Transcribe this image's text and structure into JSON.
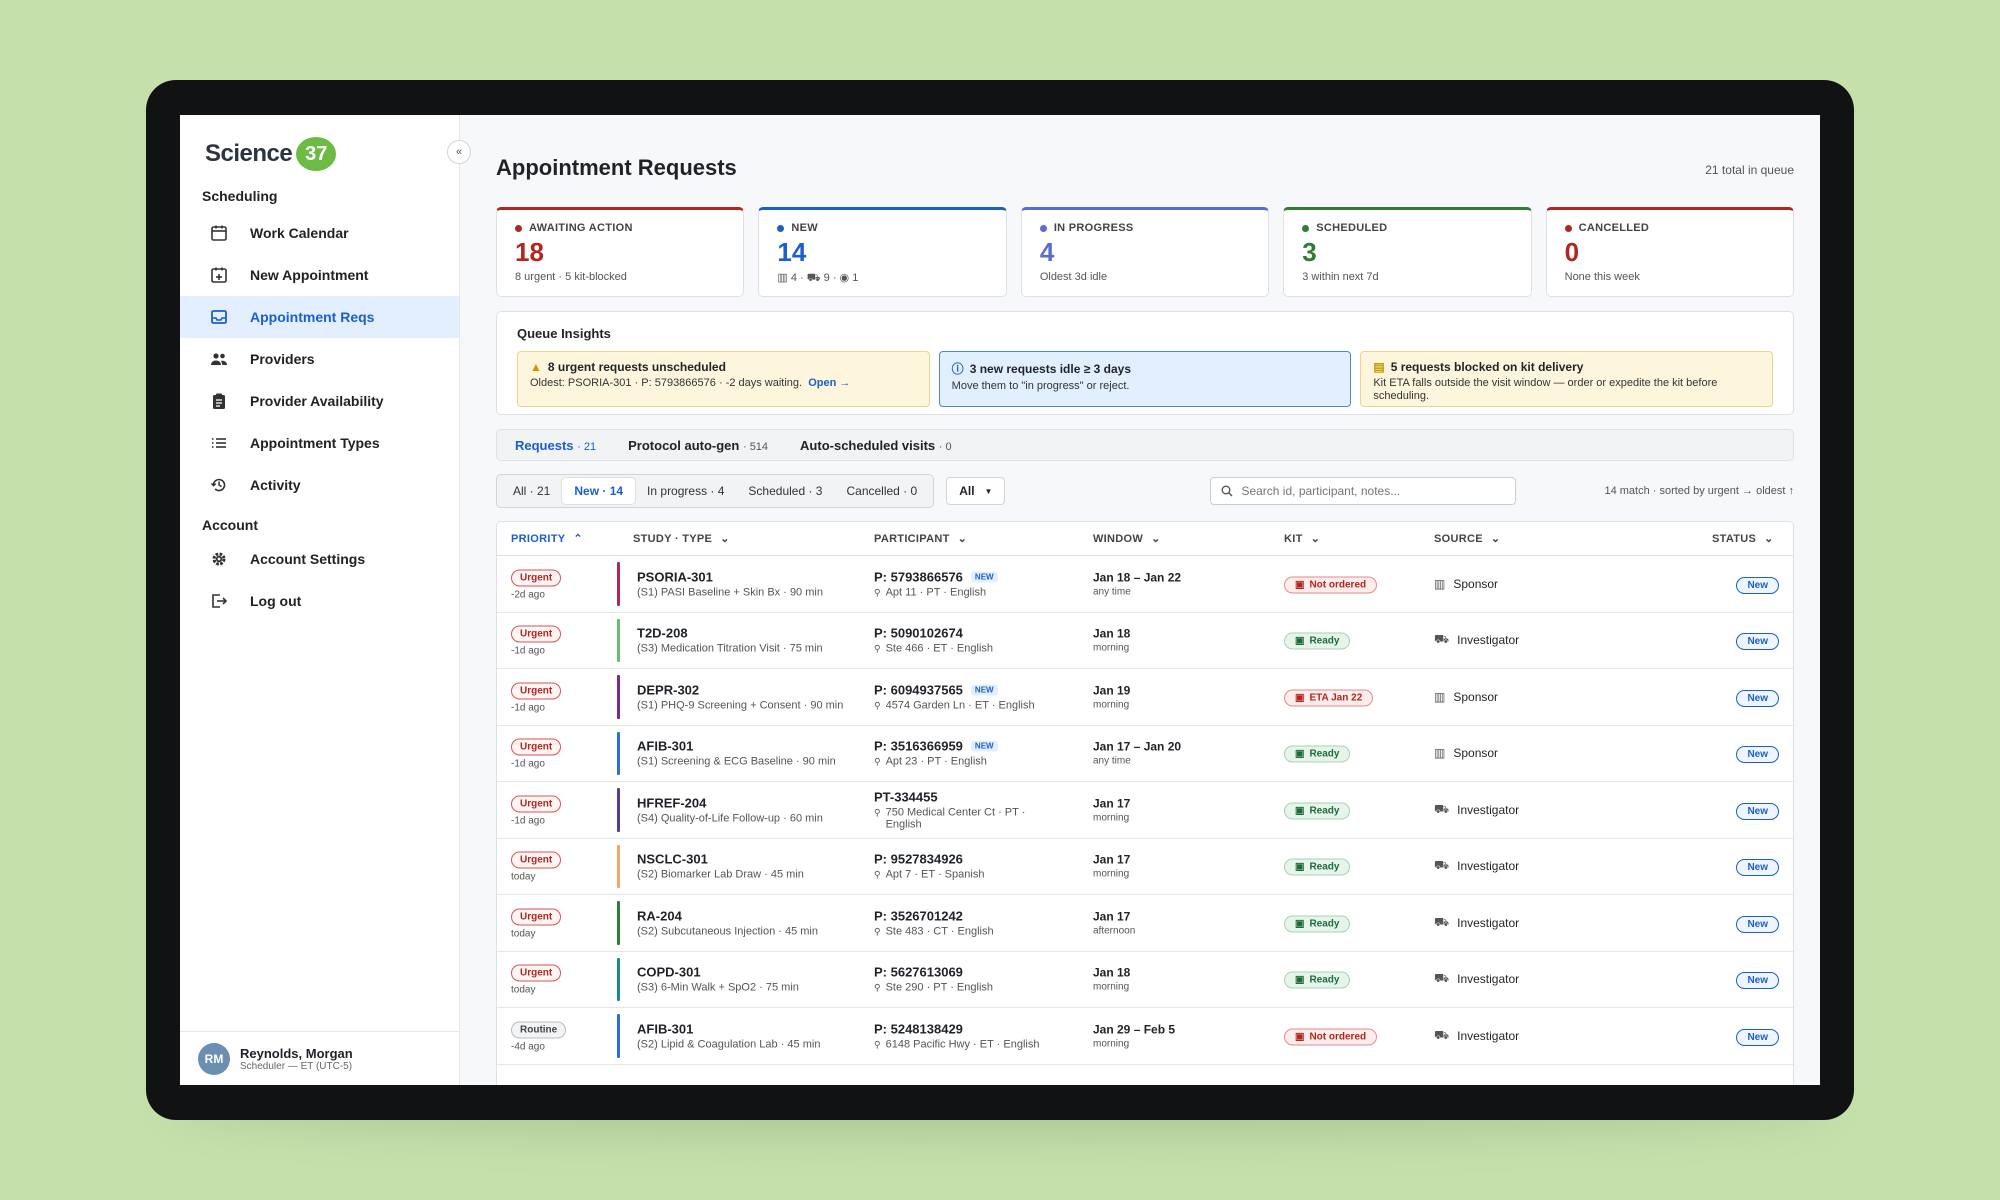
{
  "brand": {
    "name": "Science",
    "badge": "37"
  },
  "sidebar": {
    "collapse_label": "«",
    "sections": {
      "scheduling": "Scheduling",
      "account": "Account"
    },
    "items": [
      {
        "label": "Work Calendar",
        "icon": "calendar-icon"
      },
      {
        "label": "New Appointment",
        "icon": "calendar-plus-icon"
      },
      {
        "label": "Appointment Reqs",
        "icon": "inbox-icon"
      },
      {
        "label": "Providers",
        "icon": "people-icon"
      },
      {
        "label": "Provider Availability",
        "icon": "clipboard-icon"
      },
      {
        "label": "Appointment Types",
        "icon": "list-icon"
      },
      {
        "label": "Activity",
        "icon": "history-icon"
      }
    ],
    "account_items": [
      {
        "label": "Account Settings",
        "icon": "gear-icon"
      },
      {
        "label": "Log out",
        "icon": "logout-icon"
      }
    ],
    "user": {
      "initials": "RM",
      "name": "Reynolds, Morgan",
      "role": "Scheduler — ET (UTC-5)"
    }
  },
  "header": {
    "title": "Appointment Requests",
    "total": "21 total in queue"
  },
  "cards": [
    {
      "label": "AWAITING ACTION",
      "value": "18",
      "sub": "8 urgent · 5 kit-blocked",
      "color": "#b3261e"
    },
    {
      "label": "NEW",
      "value": "14",
      "sub": "▥ 4 · ⛟ 9 · ◉ 1",
      "color": "#1a5fcc"
    },
    {
      "label": "IN PROGRESS",
      "value": "4",
      "sub": "Oldest 3d idle",
      "color": "#5b6bd6"
    },
    {
      "label": "SCHEDULED",
      "value": "3",
      "sub": "3 within next 7d",
      "color": "#2e7d32"
    },
    {
      "label": "CANCELLED",
      "value": "0",
      "sub": "None this week",
      "color": "#b3261e"
    }
  ],
  "insights": {
    "title": "Queue Insights",
    "items": [
      {
        "head": "8 urgent requests unscheduled",
        "body": "Oldest: PSORIA-301 · P: 5793866576 · -2 days waiting.",
        "link": "Open →"
      },
      {
        "head": "3 new requests idle ≥ 3 days",
        "body": "Move them to \"in progress\" or reject.",
        "link": ""
      },
      {
        "head": "5 requests blocked on kit delivery",
        "body": "Kit ETA falls outside the visit window — order or expedite the kit before scheduling.",
        "link": ""
      }
    ]
  },
  "tabs": [
    {
      "label": "Requests",
      "count": "· 21"
    },
    {
      "label": "Protocol auto-gen",
      "count": "· 514"
    },
    {
      "label": "Auto-scheduled visits",
      "count": "· 0"
    }
  ],
  "filters": {
    "segments": [
      "All · 21",
      "New · 14",
      "In progress · 4",
      "Scheduled · 3",
      "Cancelled · 0"
    ],
    "select_value": "All",
    "search_placeholder": "Search id, participant, notes...",
    "match_text": "14 match · sorted by urgent → oldest ↑"
  },
  "columns": [
    "PRIORITY",
    "STUDY · TYPE",
    "PARTICIPANT",
    "WINDOW",
    "KIT",
    "SOURCE",
    "STATUS"
  ],
  "rows": [
    {
      "priority": "Urgent",
      "ago": "-2d ago",
      "bar": "#b0245f",
      "study": "PSORIA-301",
      "type": "(S1) PASI Baseline + Skin Bx · 90 min",
      "pid": "P: 5793866576",
      "new": "NEW",
      "addr": "Apt 11 · PT · English",
      "window": "Jan 18 – Jan 22",
      "win_sub": "any time",
      "kit": "Not ordered",
      "kit_ok": false,
      "source": "Sponsor",
      "status": "New"
    },
    {
      "priority": "Urgent",
      "ago": "-1d ago",
      "bar": "#6cbb6c",
      "study": "T2D-208",
      "type": "(S3) Medication Titration Visit · 75 min",
      "pid": "P: 5090102674",
      "new": "",
      "addr": "Ste 466 · ET · English",
      "window": "Jan 18",
      "win_sub": "morning",
      "kit": "Ready",
      "kit_ok": true,
      "source": "Investigator",
      "status": "New"
    },
    {
      "priority": "Urgent",
      "ago": "-1d ago",
      "bar": "#7b2a8e",
      "study": "DEPR-302",
      "type": "(S1) PHQ-9 Screening + Consent · 90 min",
      "pid": "P: 6094937565",
      "new": "NEW",
      "addr": "4574 Garden Ln · ET · English",
      "window": "Jan 19",
      "win_sub": "morning",
      "kit": "ETA Jan 22",
      "kit_ok": false,
      "source": "Sponsor",
      "status": "New"
    },
    {
      "priority": "Urgent",
      "ago": "-1d ago",
      "bar": "#2f6fd1",
      "study": "AFIB-301",
      "type": "(S1) Screening & ECG Baseline · 90 min",
      "pid": "P: 3516366959",
      "new": "NEW",
      "addr": "Apt 23 · PT · English",
      "window": "Jan 17 – Jan 20",
      "win_sub": "any time",
      "kit": "Ready",
      "kit_ok": true,
      "source": "Sponsor",
      "status": "New"
    },
    {
      "priority": "Urgent",
      "ago": "-1d ago",
      "bar": "#5a3e8e",
      "study": "HFREF-204",
      "type": "(S4) Quality-of-Life Follow-up · 60 min",
      "pid": "PT-334455",
      "new": "",
      "addr": "750 Medical Center Ct · PT · English",
      "window": "Jan 17",
      "win_sub": "morning",
      "kit": "Ready",
      "kit_ok": true,
      "source": "Investigator",
      "status": "New"
    },
    {
      "priority": "Urgent",
      "ago": "today",
      "bar": "#f2a66a",
      "study": "NSCLC-301",
      "type": "(S2) Biomarker Lab Draw · 45 min",
      "pid": "P: 9527834926",
      "new": "",
      "addr": "Apt 7 · ET · Spanish",
      "window": "Jan 17",
      "win_sub": "morning",
      "kit": "Ready",
      "kit_ok": true,
      "source": "Investigator",
      "status": "New"
    },
    {
      "priority": "Urgent",
      "ago": "today",
      "bar": "#2e7d32",
      "study": "RA-204",
      "type": "(S2) Subcutaneous Injection · 45 min",
      "pid": "P: 3526701242",
      "new": "",
      "addr": "Ste 483 · CT · English",
      "window": "Jan 17",
      "win_sub": "afternoon",
      "kit": "Ready",
      "kit_ok": true,
      "source": "Investigator",
      "status": "New"
    },
    {
      "priority": "Urgent",
      "ago": "today",
      "bar": "#1a8c8c",
      "study": "COPD-301",
      "type": "(S3) 6-Min Walk + SpO2 · 75 min",
      "pid": "P: 5627613069",
      "new": "",
      "addr": "Ste 290 · PT · English",
      "window": "Jan 18",
      "win_sub": "morning",
      "kit": "Ready",
      "kit_ok": true,
      "source": "Investigator",
      "status": "New"
    },
    {
      "priority": "Routine",
      "ago": "-4d ago",
      "bar": "#2f6fd1",
      "study": "AFIB-301",
      "type": "(S2) Lipid & Coagulation Lab · 45 min",
      "pid": "P: 5248138429",
      "new": "",
      "addr": "6148 Pacific Hwy · ET · English",
      "window": "Jan 29 – Feb 5",
      "win_sub": "morning",
      "kit": "Not ordered",
      "kit_ok": false,
      "source": "Investigator",
      "status": "New"
    }
  ]
}
